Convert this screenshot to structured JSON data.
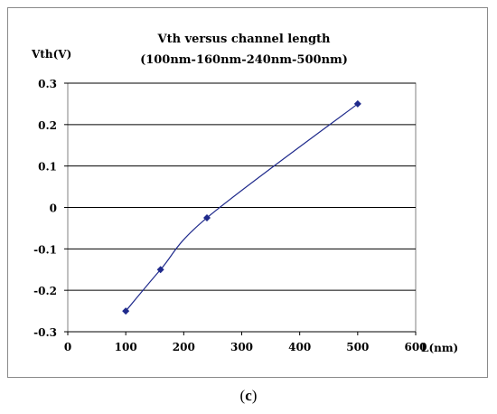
{
  "chart_data": {
    "type": "line",
    "title": "Vth versus channel length",
    "subtitle": "(100nm-160nm-240nm-500nm)",
    "ylabel": "Vth(V)",
    "xlabel": "L(nm)",
    "xlim": [
      0,
      600
    ],
    "ylim": [
      -0.3,
      0.3
    ],
    "x_ticks": [
      "0",
      "100",
      "200",
      "300",
      "400",
      "500",
      "600"
    ],
    "y_ticks": [
      "0.3",
      "0.2",
      "0.1",
      "0",
      "-0.1",
      "-0.2",
      "-0.3"
    ],
    "grid": "horizontal",
    "series": [
      {
        "x": [
          100,
          160,
          240,
          500
        ],
        "y": [
          -0.25,
          -0.15,
          -0.025,
          0.25
        ],
        "color": "#1f2a8c",
        "marker": "diamond"
      }
    ]
  },
  "caption": {
    "open": "(",
    "letter": "c",
    "close": ")"
  }
}
